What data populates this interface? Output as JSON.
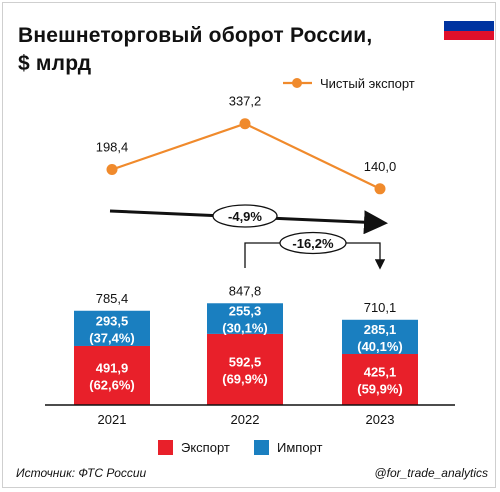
{
  "header": {
    "title_line1": "Внешнеторговый оборот России,",
    "title_line2": "$ млрд"
  },
  "flag": {
    "stripes": [
      "#ffffff",
      "#0033a0",
      "#e0102b"
    ]
  },
  "footer": {
    "source": "Источник: ФТС России",
    "handle": "@for_trade_analytics"
  },
  "colors": {
    "export": "#e8202a",
    "import": "#1a7fc0",
    "net_export": "#f08a2c"
  },
  "chart_data": [
    {
      "type": "line",
      "categories": [
        "2021",
        "2022",
        "2023"
      ],
      "series": [
        {
          "name": "Чистый экспорт",
          "values": [
            198.4,
            337.2,
            140.0
          ],
          "labels": [
            "198,4",
            "337,2",
            "140,0"
          ]
        }
      ],
      "legend": "top-right",
      "grid": false
    },
    {
      "type": "bar",
      "stacked": true,
      "categories": [
        "2021",
        "2022",
        "2023"
      ],
      "series": [
        {
          "name": "Экспорт",
          "values": [
            491.9,
            592.5,
            425.1
          ],
          "labels": [
            "491,9\n(62,6%)",
            "592,5\n(69,9%)",
            "425,1\n(59,9%)"
          ]
        },
        {
          "name": "Импорт",
          "values": [
            293.5,
            255.3,
            285.1
          ],
          "labels": [
            "293,5\n(37,4%)",
            "255,3\n(30,1%)",
            "285,1\n(40,1%)"
          ]
        }
      ],
      "totals": [
        785.4,
        847.8,
        710.1
      ],
      "total_labels": [
        "785,4",
        "847,8",
        "710,1"
      ],
      "legend": "bottom",
      "grid": false,
      "annotations": [
        {
          "text": "-4,9%",
          "from": "2021",
          "to": "2023"
        },
        {
          "text": "-16,2%",
          "from": "2022",
          "to": "2023"
        }
      ]
    }
  ]
}
